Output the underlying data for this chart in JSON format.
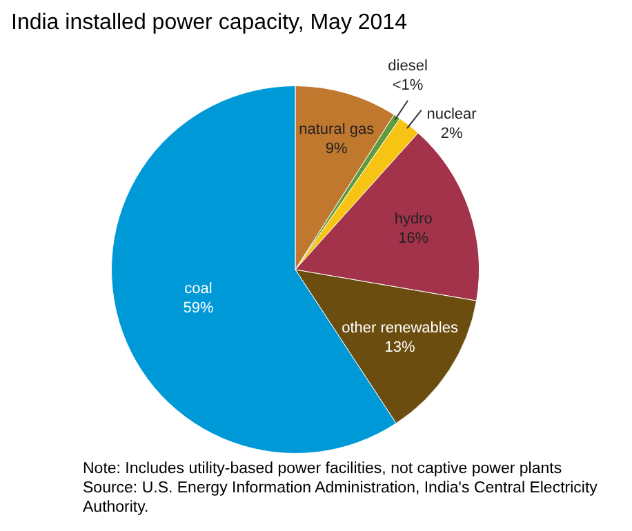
{
  "chart_data": {
    "type": "pie",
    "title": "India installed power capacity, May 2014",
    "categories": [
      "natural gas",
      "diesel",
      "nuclear",
      "hydro",
      "other renewables",
      "coal"
    ],
    "values": [
      9,
      0.6,
      2,
      16,
      13,
      59
    ],
    "value_labels": [
      "9%",
      "<1%",
      "2%",
      "16%",
      "13%",
      "59%"
    ],
    "colors": [
      "#c0782e",
      "#5f9a3c",
      "#f7c413",
      "#a3334a",
      "#6b4d0f",
      "#0099d8"
    ],
    "legend": false,
    "annotations": [
      "Note: Includes utility-based power facilities, not captive power plants",
      "Source: U.S. Energy Information  Administration, India's Central Electricity Authority."
    ]
  }
}
